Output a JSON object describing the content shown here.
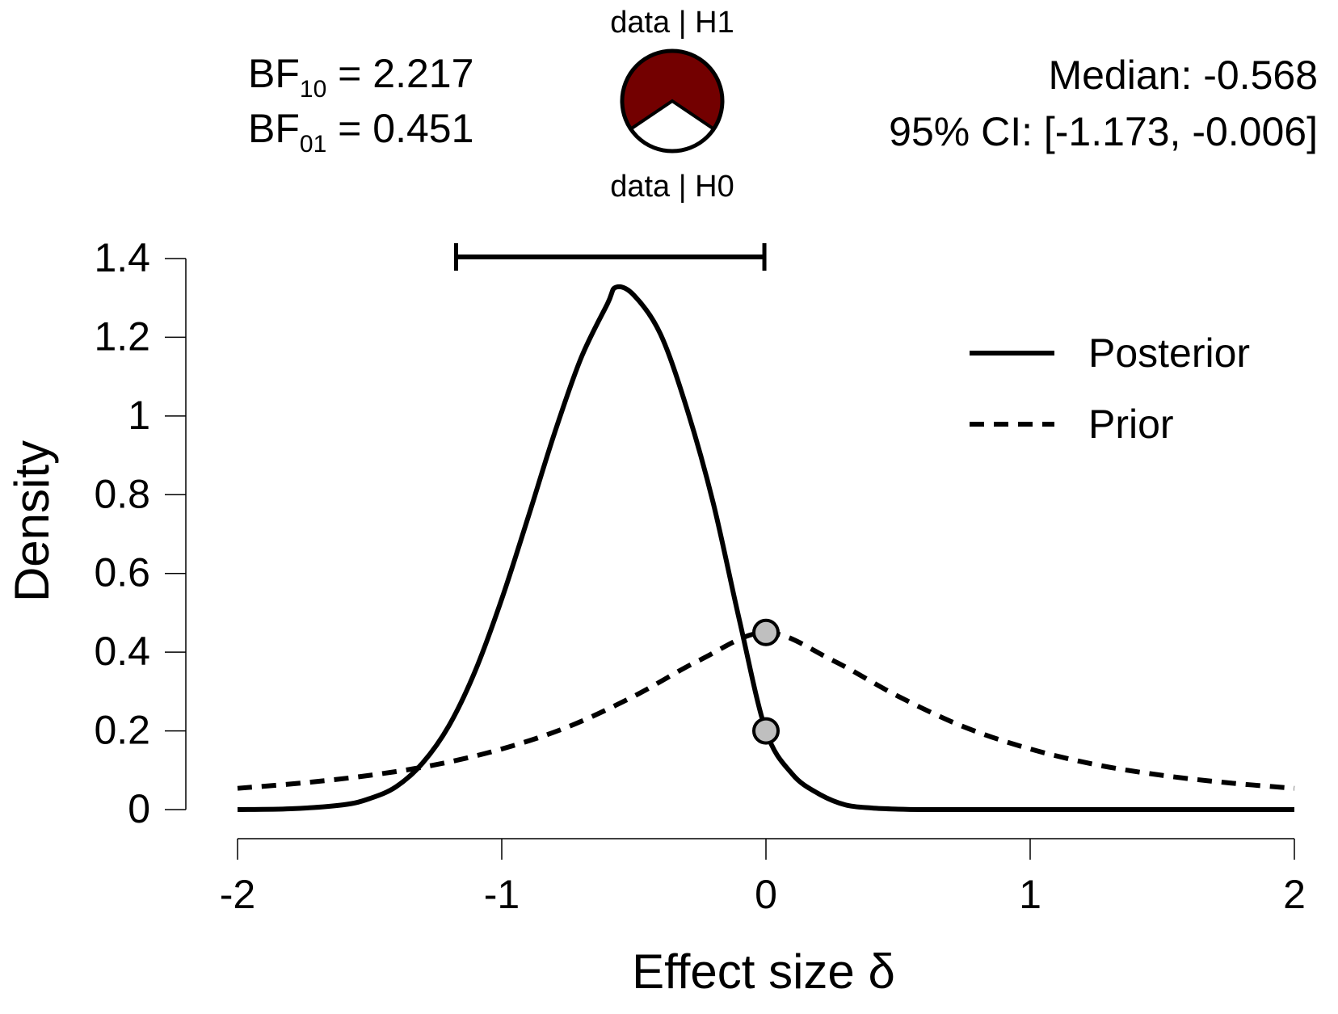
{
  "header": {
    "bf10": {
      "prefix": "BF",
      "sub": "10",
      "rest": " = 2.217"
    },
    "bf01": {
      "prefix": "BF",
      "sub": "01",
      "rest": " = 0.451"
    },
    "pie_top_label": "data | H1",
    "pie_bottom_label": "data | H0",
    "median": "Median: -0.568",
    "ci": "95% CI: [-1.173, -0.006]"
  },
  "chart_data": {
    "type": "line",
    "xlabel": "Effect size δ",
    "ylabel": "Density",
    "xlim": [
      -2,
      2
    ],
    "ylim": [
      0,
      1.4
    ],
    "xticks": [
      -2,
      -1,
      0,
      1,
      2
    ],
    "xtick_labels": [
      "-2",
      "-1",
      "0",
      "1",
      "2"
    ],
    "yticks": [
      0,
      0.2,
      0.4,
      0.6,
      0.8,
      1,
      1.2,
      1.4
    ],
    "ytick_labels": [
      "0",
      "0.2",
      "0.4",
      "0.6",
      "0.8",
      "1",
      "1.2",
      "1.4"
    ],
    "legend": {
      "position": "top-right"
    },
    "series": [
      {
        "name": "Posterior",
        "style": "solid",
        "x": [
          -2.0,
          -1.8,
          -1.6,
          -1.5,
          -1.4,
          -1.3,
          -1.2,
          -1.1,
          -1.0,
          -0.9,
          -0.8,
          -0.7,
          -0.6,
          -0.568,
          -0.5,
          -0.4,
          -0.3,
          -0.2,
          -0.1,
          0.0,
          0.1,
          0.2,
          0.3,
          0.4,
          0.5,
          0.6,
          0.8,
          1.0,
          1.5,
          2.0
        ],
        "y": [
          0.0,
          0.002,
          0.012,
          0.028,
          0.058,
          0.118,
          0.213,
          0.353,
          0.535,
          0.743,
          0.957,
          1.147,
          1.285,
          1.327,
          1.307,
          1.209,
          1.02,
          0.78,
          0.48,
          0.2,
          0.09,
          0.04,
          0.012,
          0.004,
          0.001,
          0.0,
          0.0,
          0.0,
          0.0,
          0.0
        ]
      },
      {
        "name": "Prior",
        "style": "dashed",
        "x": [
          -2.0,
          -1.75,
          -1.5,
          -1.25,
          -1.0,
          -0.75,
          -0.5,
          -0.25,
          0.0,
          0.25,
          0.5,
          0.75,
          1.0,
          1.25,
          1.5,
          1.75,
          2.0
        ],
        "y": [
          0.054,
          0.068,
          0.087,
          0.114,
          0.154,
          0.21,
          0.288,
          0.38,
          0.45,
          0.38,
          0.288,
          0.21,
          0.154,
          0.114,
          0.087,
          0.068,
          0.054
        ]
      }
    ],
    "points": [
      {
        "x": 0,
        "y": 0.45
      },
      {
        "x": 0,
        "y": 0.2
      }
    ],
    "credible_interval": {
      "lower": -1.173,
      "upper": -0.006,
      "y": 1.4
    },
    "pie": {
      "h1_proportion": 0.689,
      "h0_proportion": 0.311,
      "h1_color": "#730000",
      "h0_color": "#ffffff"
    },
    "colors": {
      "line": "#000000",
      "point_fill": "#bfbfbf"
    }
  }
}
